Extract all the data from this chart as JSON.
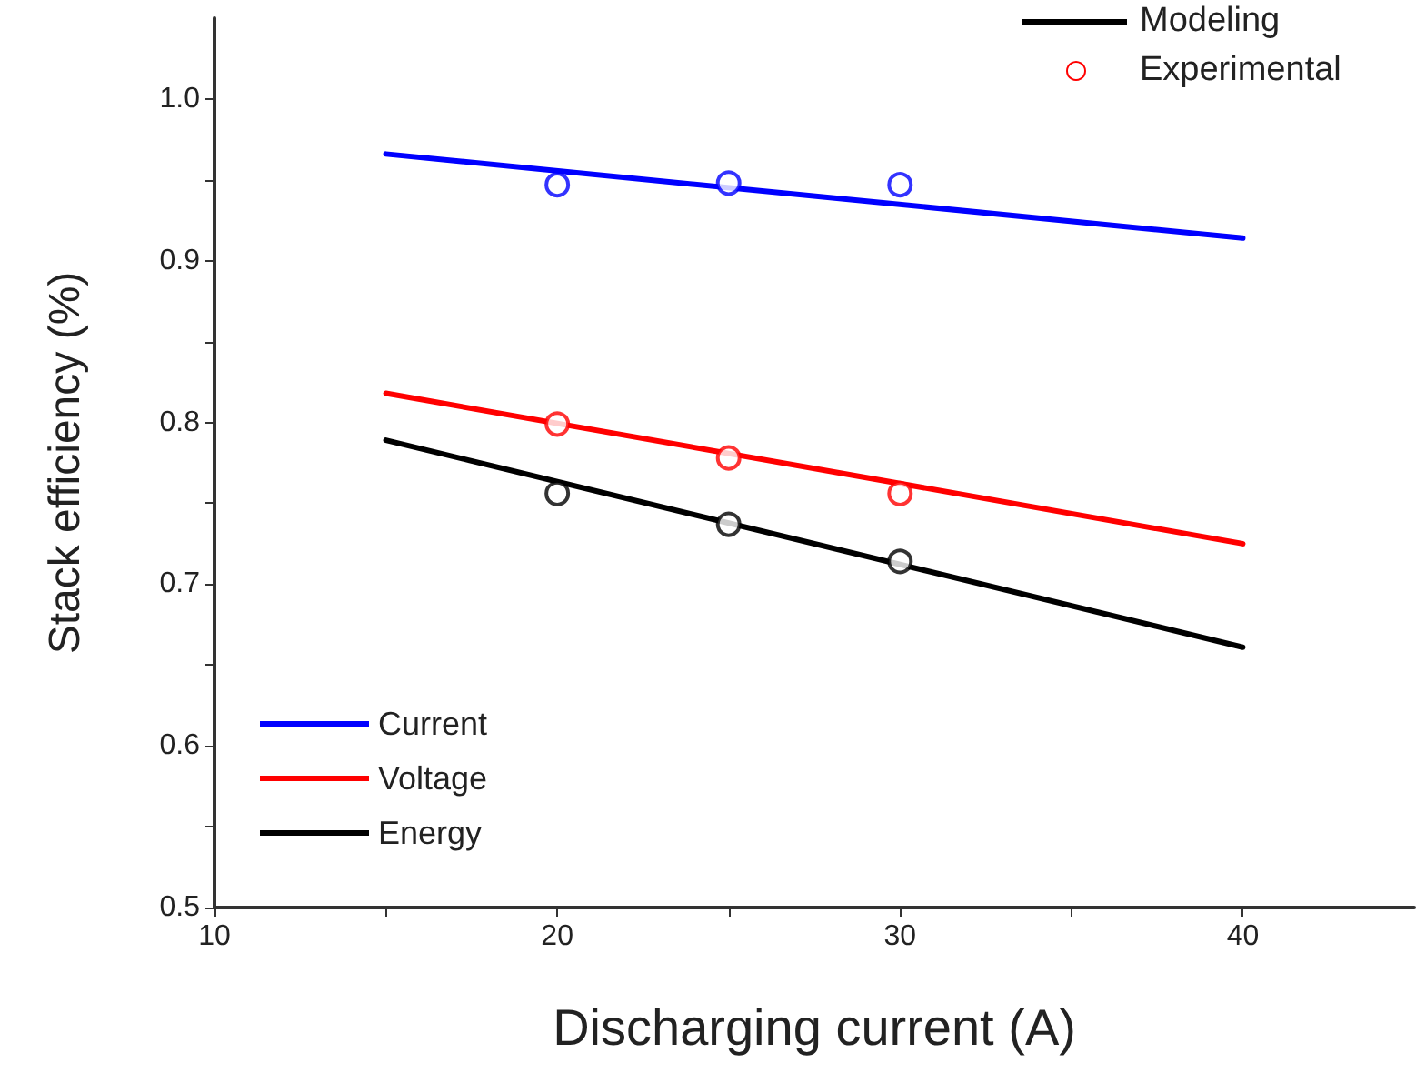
{
  "chart_data": {
    "type": "line",
    "xlabel": "Discharging current (A)",
    "ylabel": "Stack efficiency (%)",
    "xlim": [
      10,
      45
    ],
    "xticks": [
      10,
      {
        "value": 15,
        "label": null
      },
      20,
      {
        "value": 25,
        "label": null
      },
      30,
      {
        "value": 35,
        "label": null
      },
      40
    ],
    "ylim": [
      0.5,
      1.05
    ],
    "yticks": [
      {
        "value": 0.5,
        "label": "0.5"
      },
      {
        "value": 0.55,
        "label": null
      },
      {
        "value": 0.6,
        "label": "0.6"
      },
      {
        "value": 0.65,
        "label": null
      },
      {
        "value": 0.7,
        "label": "0.7"
      },
      {
        "value": 0.75,
        "label": null
      },
      {
        "value": 0.8,
        "label": "0.8"
      },
      {
        "value": 0.85,
        "label": null
      },
      {
        "value": 0.9,
        "label": "0.9"
      },
      {
        "value": 0.95,
        "label": null
      },
      {
        "value": 1.0,
        "label": "1.0"
      }
    ],
    "series": [
      {
        "name": "Current",
        "color": "#0000ff",
        "x": [
          15,
          40
        ],
        "values": [
          0.966,
          0.914
        ]
      },
      {
        "name": "Voltage",
        "color": "#ff0000",
        "x": [
          15,
          40
        ],
        "values": [
          0.818,
          0.725
        ]
      },
      {
        "name": "Energy",
        "color": "#000000",
        "x": [
          15,
          40
        ],
        "values": [
          0.789,
          0.661
        ]
      },
      {
        "type": "scatter",
        "marker": "circle",
        "color": "#0000ff",
        "x": [
          20,
          25,
          30
        ],
        "values": [
          0.947,
          0.948,
          0.947
        ]
      },
      {
        "type": "scatter",
        "marker": "circle",
        "color": "#ff0000",
        "x": [
          20,
          25,
          30
        ],
        "values": [
          0.799,
          0.778,
          0.756
        ]
      },
      {
        "type": "scatter",
        "marker": "circle",
        "color": "#000000",
        "x": [
          20,
          25,
          30
        ],
        "values": [
          0.756,
          0.737,
          0.714
        ]
      }
    ],
    "annotations": [
      "Modeling",
      "Experimental"
    ],
    "legend": "bottom left",
    "marker": "none",
    "grid": false
  }
}
